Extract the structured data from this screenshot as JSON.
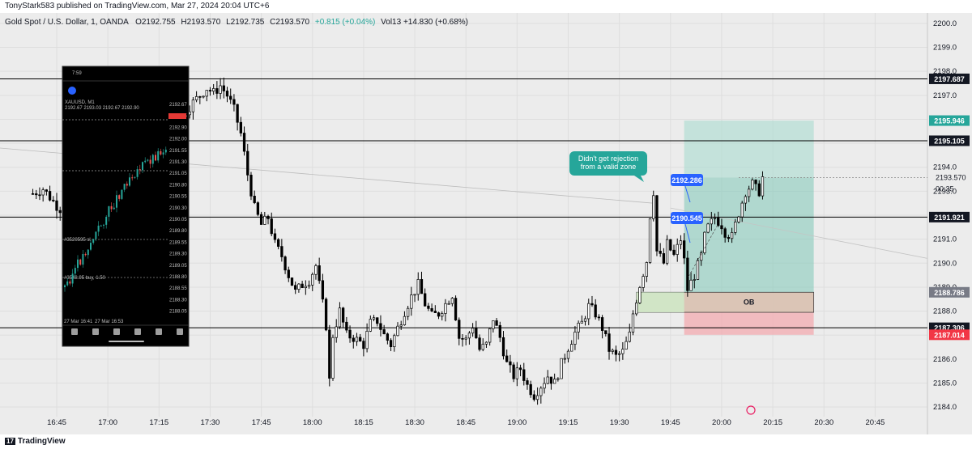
{
  "header": {
    "published": "TonyStark583 published on TradingView.com, Mar 27, 2024 20:04 UTC+6"
  },
  "footer": {
    "logo_mark": "17",
    "brand": "TradingView"
  },
  "colors": {
    "background": "#ececec",
    "up_candle": "#ffffff",
    "down_candle": "#000000",
    "profit_zone": "#7fc9b8",
    "loss_zone": "#f4a7ad",
    "ob_zone": "#d9c7b6",
    "callout": "#26a69a",
    "label_blue": "#2962ff",
    "tag_dark": "#131722",
    "tag_green": "#26a69a",
    "tag_gray": "#787b86",
    "tag_red": "#f23645"
  },
  "chart_data": {
    "type": "candlestick",
    "symbol": "Gold Spot / U.S. Dollar, 1, OANDA",
    "ohlc_readout": {
      "open": "O2192.755",
      "high": "H2193.570",
      "low": "L2192.735",
      "close": "C2193.570",
      "change": "+0.815 (+0.04%)",
      "volume": "Vol13 +14.830 (+0.68%)"
    },
    "ylim": [
      2183.6,
      2200.3
    ],
    "y_ticks": [
      2200,
      2199,
      2198,
      2197,
      2196,
      2195,
      2194,
      2193,
      2192,
      2191,
      2190,
      2189,
      2188,
      2187,
      2186,
      2185,
      2184
    ],
    "x_range_minutes": [
      0,
      255
    ],
    "x_ticks": [
      {
        "label": "16:45",
        "t": 0
      },
      {
        "label": "17:00",
        "t": 15
      },
      {
        "label": "17:15",
        "t": 30
      },
      {
        "label": "17:30",
        "t": 45
      },
      {
        "label": "17:45",
        "t": 60
      },
      {
        "label": "18:00",
        "t": 75
      },
      {
        "label": "18:15",
        "t": 90
      },
      {
        "label": "18:30",
        "t": 105
      },
      {
        "label": "18:45",
        "t": 120
      },
      {
        "label": "19:00",
        "t": 135
      },
      {
        "label": "19:15",
        "t": 150
      },
      {
        "label": "19:30",
        "t": 165
      },
      {
        "label": "19:45",
        "t": 180
      },
      {
        "label": "20:00",
        "t": 195
      },
      {
        "label": "20:15",
        "t": 210
      },
      {
        "label": "20:30",
        "t": 225
      },
      {
        "label": "20:45",
        "t": 240
      }
    ],
    "grid": true,
    "candle_path": [
      [
        -7,
        2192.9
      ],
      [
        -4,
        2193.1
      ],
      [
        0,
        2192.4
      ],
      [
        4,
        2191.9
      ],
      [
        8,
        2192.3
      ],
      [
        11,
        2191.7
      ],
      [
        15,
        2192.2
      ],
      [
        18,
        2191.6
      ],
      [
        21,
        2192.5
      ],
      [
        23,
        2193.4
      ],
      [
        25,
        2195.1
      ],
      [
        27,
        2196.9
      ],
      [
        29,
        2196.3
      ],
      [
        31,
        2196.0
      ],
      [
        33,
        2195.4
      ],
      [
        35,
        2196.8
      ],
      [
        37,
        2196.2
      ],
      [
        40,
        2196.7
      ],
      [
        42,
        2197.0
      ],
      [
        44,
        2197.3
      ],
      [
        46,
        2197.1
      ],
      [
        48,
        2197.4
      ],
      [
        50,
        2197.0
      ],
      [
        52,
        2196.4
      ],
      [
        54,
        2195.4
      ],
      [
        56,
        2193.7
      ],
      [
        58,
        2192.3
      ],
      [
        60,
        2191.6
      ],
      [
        62,
        2191.9
      ],
      [
        64,
        2190.8
      ],
      [
        66,
        2190.3
      ],
      [
        68,
        2189.5
      ],
      [
        70,
        2188.8
      ],
      [
        72,
        2189.1
      ],
      [
        74,
        2189.3
      ],
      [
        76,
        2189.9
      ],
      [
        78,
        2188.3
      ],
      [
        79,
        2187.4
      ],
      [
        80,
        2185.1
      ],
      [
        81,
        2187.0
      ],
      [
        83,
        2188.0
      ],
      [
        85,
        2187.0
      ],
      [
        87,
        2186.9
      ],
      [
        90,
        2186.6
      ],
      [
        92,
        2187.5
      ],
      [
        94,
        2187.6
      ],
      [
        96,
        2187.0
      ],
      [
        98,
        2186.6
      ],
      [
        100,
        2187.3
      ],
      [
        102,
        2188.0
      ],
      [
        104,
        2188.6
      ],
      [
        106,
        2189.1
      ],
      [
        108,
        2188.3
      ],
      [
        110,
        2187.8
      ],
      [
        112,
        2187.9
      ],
      [
        114,
        2188.3
      ],
      [
        116,
        2188.7
      ],
      [
        118,
        2186.9
      ],
      [
        120,
        2186.8
      ],
      [
        122,
        2187.4
      ],
      [
        124,
        2186.4
      ],
      [
        126,
        2186.6
      ],
      [
        128,
        2187.7
      ],
      [
        130,
        2186.9
      ],
      [
        132,
        2185.8
      ],
      [
        134,
        2185.3
      ],
      [
        136,
        2185.6
      ],
      [
        138,
        2184.9
      ],
      [
        140,
        2184.5
      ],
      [
        142,
        2184.9
      ],
      [
        144,
        2185.3
      ],
      [
        146,
        2185.0
      ],
      [
        148,
        2185.8
      ],
      [
        150,
        2186.5
      ],
      [
        152,
        2187.1
      ],
      [
        154,
        2187.5
      ],
      [
        156,
        2188.2
      ],
      [
        158,
        2187.9
      ],
      [
        160,
        2187.3
      ],
      [
        162,
        2186.4
      ],
      [
        164,
        2186.1
      ],
      [
        166,
        2186.3
      ],
      [
        168,
        2187.0
      ],
      [
        169,
        2187.9
      ],
      [
        171,
        2189.1
      ],
      [
        173,
        2190.1
      ],
      [
        174,
        2192.0
      ],
      [
        175,
        2193.0
      ],
      [
        176,
        2190.5
      ],
      [
        178,
        2190.0
      ],
      [
        179,
        2190.8
      ],
      [
        181,
        2190.3
      ],
      [
        183,
        2191.0
      ],
      [
        184,
        2190.1
      ],
      [
        185,
        2188.9
      ],
      [
        187,
        2189.5
      ],
      [
        189,
        2190.3
      ],
      [
        190,
        2191.1
      ],
      [
        191,
        2191.5
      ],
      [
        193,
        2191.9
      ],
      [
        195,
        2191.6
      ],
      [
        196,
        2191.3
      ],
      [
        198,
        2191.1
      ],
      [
        200,
        2192.1
      ],
      [
        202,
        2193.0
      ],
      [
        204,
        2193.3
      ],
      [
        205,
        2193.1
      ],
      [
        206,
        2193.0
      ],
      [
        207,
        2193.57
      ]
    ],
    "horizontal_levels": [
      2197.687,
      2195.105,
      2191.921,
      2187.306
    ],
    "price_tags": [
      {
        "label": "2197.687",
        "value": 2197.687,
        "color": "#131722"
      },
      {
        "label": "2195.946",
        "value": 2195.946,
        "color": "#26a69a"
      },
      {
        "label": "2195.105",
        "value": 2195.105,
        "color": "#131722"
      },
      {
        "label": "2193.570",
        "value": 2193.57,
        "color": "none"
      },
      {
        "label": "00:35",
        "value": 2193.1,
        "color": "none"
      },
      {
        "label": "2191.921",
        "value": 2191.921,
        "color": "#131722"
      },
      {
        "label": "2188.786",
        "value": 2188.786,
        "color": "#787b86"
      },
      {
        "label": "2187.306",
        "value": 2187.306,
        "color": "#131722"
      },
      {
        "label": "2187.014",
        "value": 2187.014,
        "color": "#f23645"
      }
    ],
    "position": {
      "t_start": 184,
      "t_end": 222,
      "take_profit": 2195.946,
      "entry": 2188.786,
      "stop_loss": 2187.014
    },
    "order_block": {
      "t_start": 170,
      "t_end": 222,
      "top": 2188.786,
      "bottom": 2187.95,
      "label": "OB"
    },
    "annotations": [
      {
        "text_lines": [
          "Didn't get rejection",
          "from a valid zone"
        ],
        "t": 177,
        "y": 2194.3
      },
      {
        "text": "2192.286",
        "t": 183,
        "y": 2192.286
      },
      {
        "text": "2190.545",
        "t": 183,
        "y": 2190.545
      }
    ],
    "inset_phone": {
      "time": "7:59",
      "symbol": "XAUUSD, M1",
      "quote": "2192.67 2193.03 2192.67 2192.90",
      "price_labels": [
        "2192.67",
        "2193.45",
        "2192.90",
        "2192.00",
        "2191.55",
        "2191.30",
        "2191.05",
        "2190.80",
        "2190.55",
        "2190.30",
        "2190.05",
        "2189.80",
        "2189.55",
        "2189.30",
        "2189.05",
        "2188.80",
        "2188.55",
        "2188.30",
        "2188.05"
      ],
      "date_labels": [
        "27 Mar 16:41",
        "27 Mar 16:53"
      ],
      "order_sl": "#3520595 sl",
      "order_buy": "#3548.95 buy, 1.50"
    }
  }
}
